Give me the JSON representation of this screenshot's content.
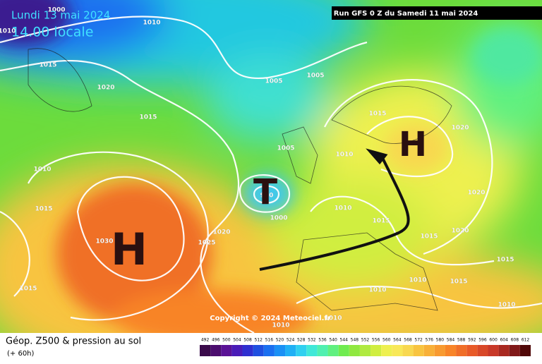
{
  "header": {
    "date": "Lundi 13 mai 2024",
    "time": "14.00 locale",
    "run": "Run GFS 0 Z du Samedi 11 mai 2024"
  },
  "map": {
    "pressure_centers": [
      "H",
      "T",
      "H"
    ],
    "isobar_labels": [
      "1000",
      "1010",
      "1010",
      "1015",
      "1020",
      "1015",
      "1005",
      "1005",
      "1015",
      "1020",
      "1010",
      "1005",
      "1010",
      "1015",
      "1020",
      "1025",
      "1030",
      "990",
      "1000",
      "1010",
      "1015",
      "1015",
      "1020",
      "1020",
      "1015",
      "1015",
      "1010",
      "1010",
      "1015",
      "1010",
      "1010",
      "1010"
    ],
    "copyright": "Copyright © 2024 Meteociel.fr"
  },
  "footer": {
    "title": "Géop. Z500 & pression au sol",
    "subtitle": "(+ 60h)",
    "scale": {
      "labels": [
        "492",
        "496",
        "500",
        "504",
        "508",
        "512",
        "516",
        "520",
        "524",
        "528",
        "532",
        "536",
        "540",
        "544",
        "548",
        "552",
        "556",
        "560",
        "564",
        "568",
        "572",
        "576",
        "580",
        "584",
        "588",
        "592",
        "596",
        "600",
        "604",
        "608",
        "612"
      ],
      "colors": [
        "#3a0a4a",
        "#4b0d6e",
        "#5a1296",
        "#4a1cb8",
        "#2f2fd0",
        "#1f4fe0",
        "#1a6ff0",
        "#1a90f5",
        "#20b0f5",
        "#30d0f0",
        "#40e8d8",
        "#50f0b0",
        "#60f080",
        "#70ec50",
        "#90e840",
        "#b0ea40",
        "#d0ee40",
        "#eef050",
        "#f8e858",
        "#f8d850",
        "#f8c440",
        "#f8b038",
        "#f89a30",
        "#f88428",
        "#f06e28",
        "#e85a28",
        "#d84828",
        "#c83828",
        "#a82820",
        "#801818",
        "#500808"
      ]
    }
  }
}
